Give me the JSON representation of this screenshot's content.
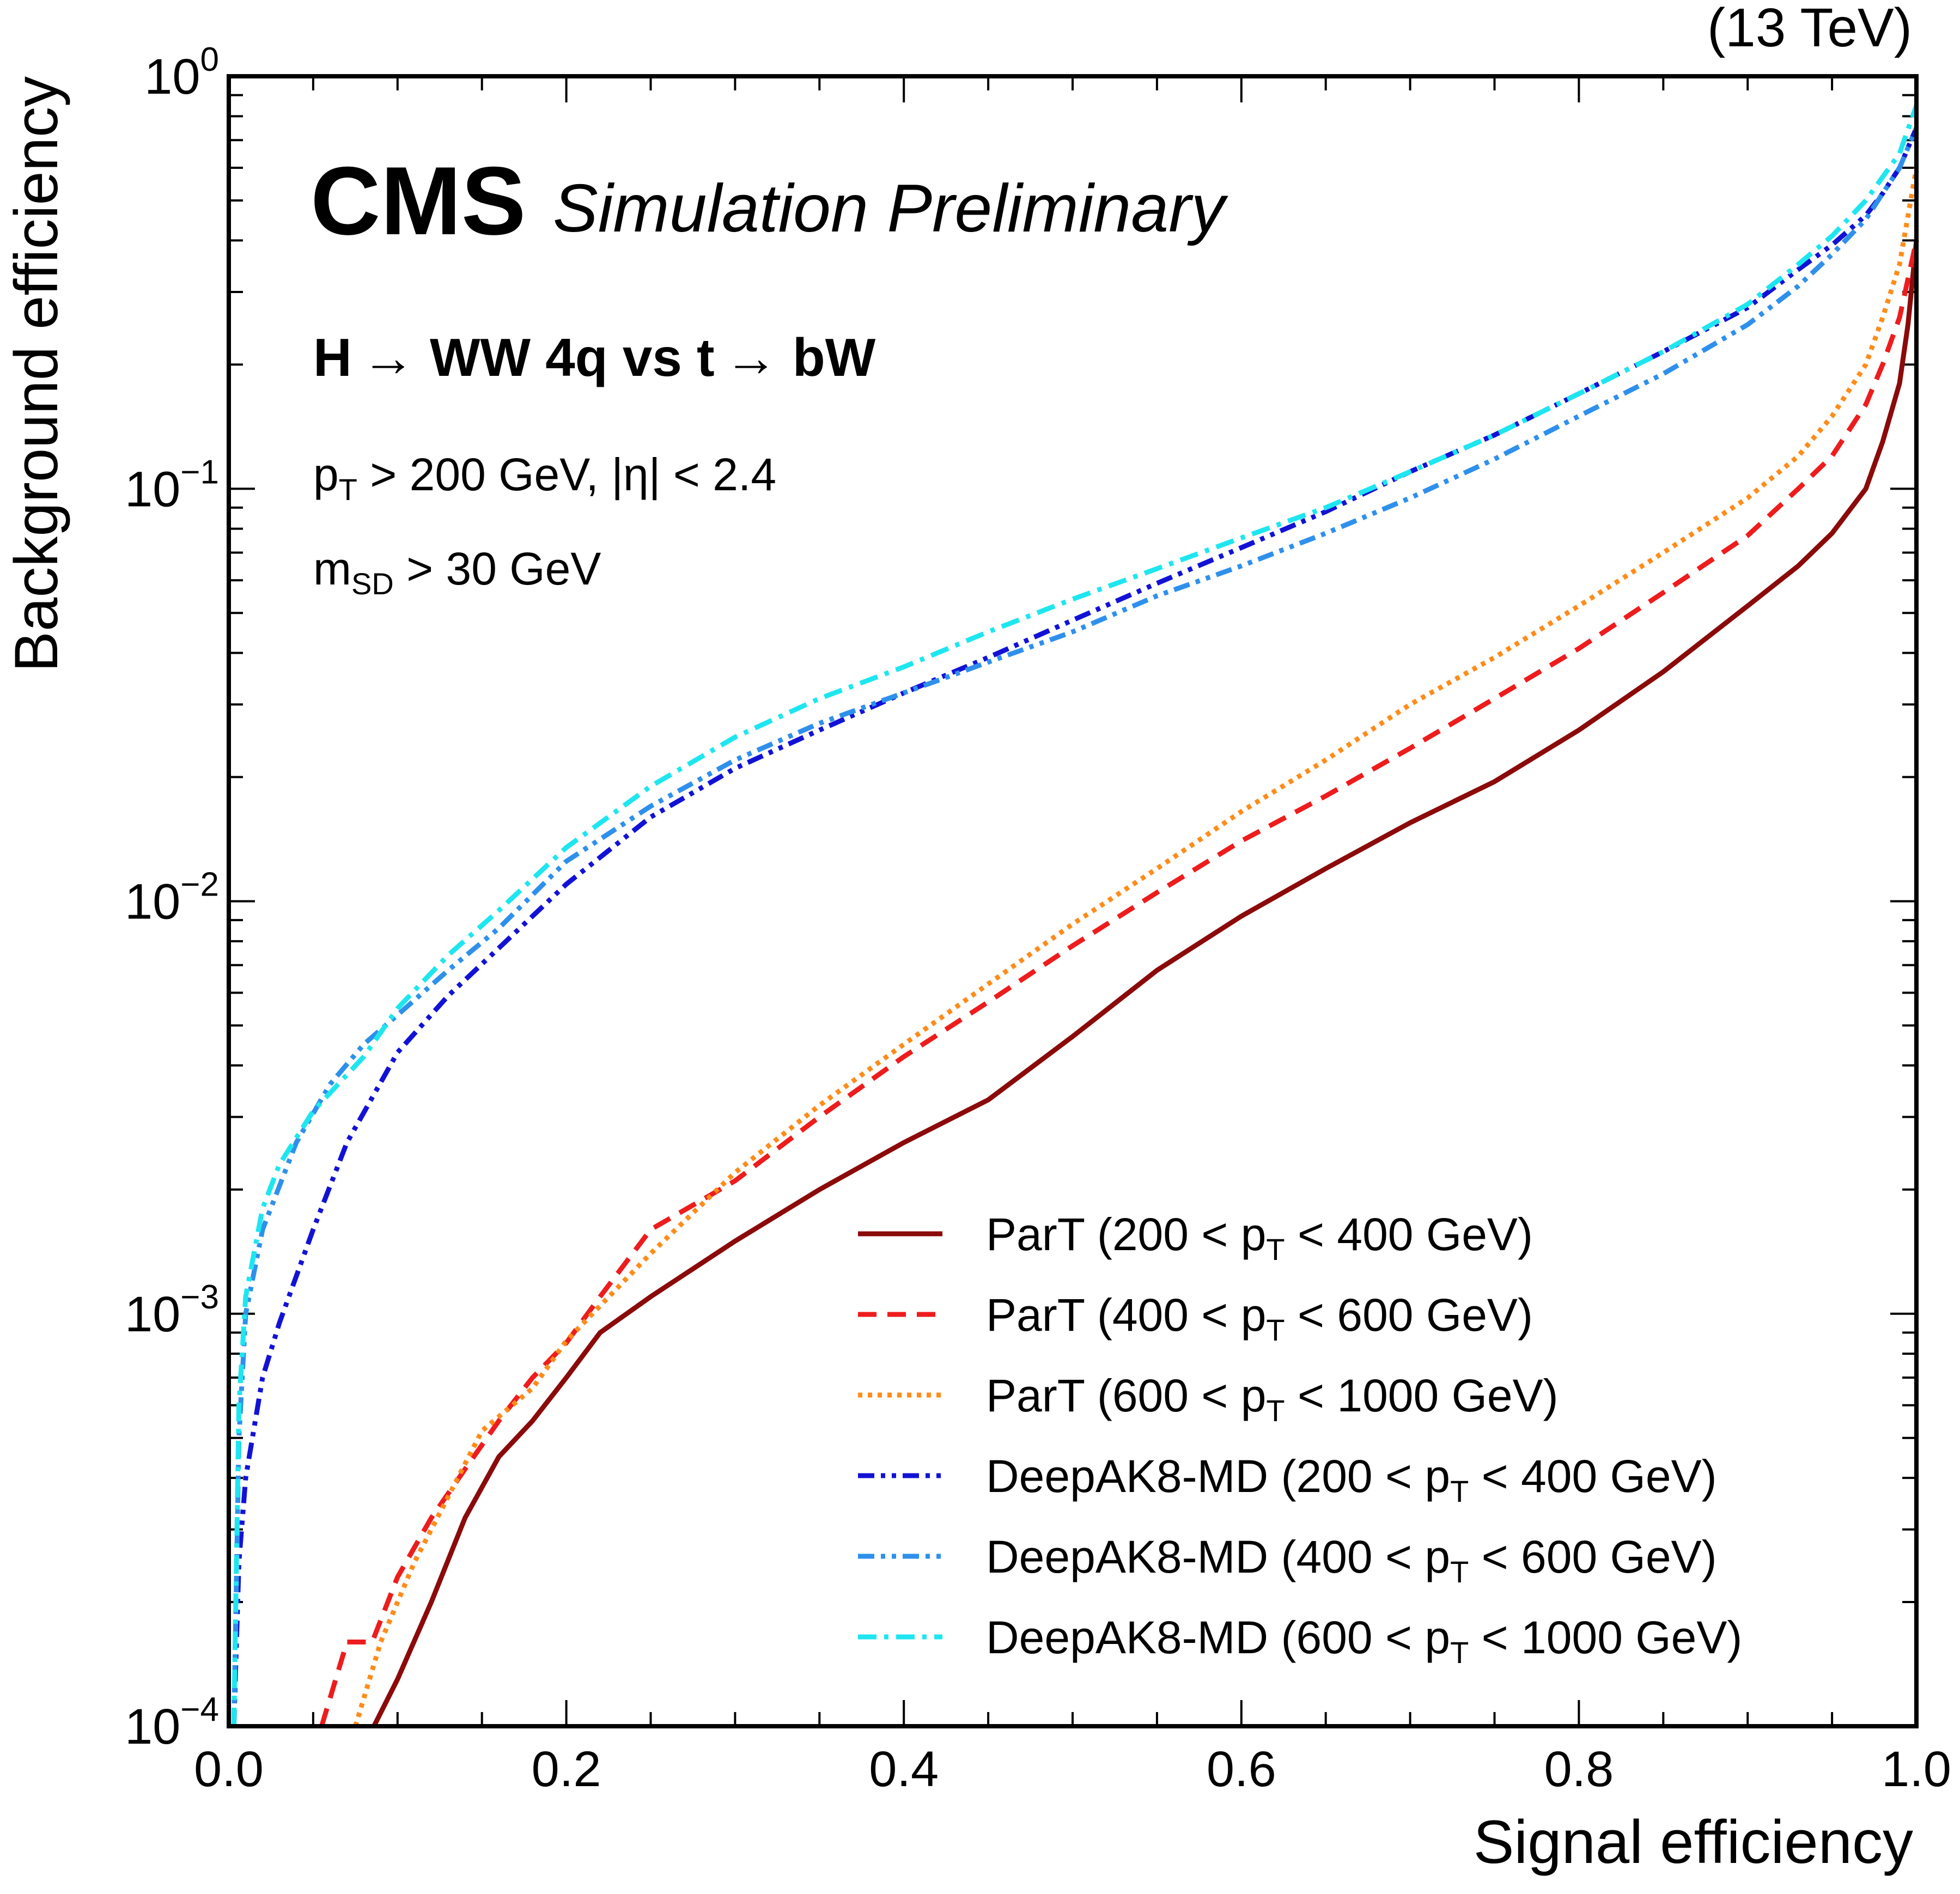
{
  "energy_label": "(13 TeV)",
  "cms_label": "CMS",
  "cms_sublabel": "Simulation Preliminary",
  "annotations": {
    "process": {
      "pre": "H",
      "mid": " WW 4q vs t",
      "post": " bW",
      "arrow": "→"
    },
    "pt_cut": {
      "p": "p",
      "sub": "T",
      "rest": " > 200 GeV,  |η| < 2.4"
    },
    "msd_cut": {
      "m": "m",
      "sub": "SD",
      "rest": " > 30 GeV"
    }
  },
  "chart_data": {
    "type": "line",
    "title": "",
    "xlabel": "Signal efficiency",
    "ylabel": "Background efficiency",
    "xlim": [
      0.0,
      1.0
    ],
    "ylim": [
      0.0001,
      1.0
    ],
    "yscale": "log",
    "x_ticks": [
      "0.0",
      "0.2",
      "0.4",
      "0.6",
      "0.8",
      "1.0"
    ],
    "y_ticks": [
      {
        "base": "10",
        "exp": "0"
      },
      {
        "base": "10",
        "exp": "−1"
      },
      {
        "base": "10",
        "exp": "−2"
      },
      {
        "base": "10",
        "exp": "−3"
      },
      {
        "base": "10",
        "exp": "−4"
      }
    ],
    "legend_position": "bottom-right",
    "series": [
      {
        "name": "ParT (200<pT<400 GeV)",
        "label_pre": "ParT (200 < p",
        "label_sub": "T",
        "label_post": " < 400 GeV)",
        "color": "#8b0a0a",
        "style": "solid",
        "x": [
          0.086,
          0.1,
          0.12,
          0.14,
          0.16,
          0.18,
          0.2,
          0.22,
          0.25,
          0.3,
          0.35,
          0.4,
          0.45,
          0.5,
          0.55,
          0.6,
          0.65,
          0.7,
          0.75,
          0.8,
          0.85,
          0.9,
          0.93,
          0.95,
          0.97,
          0.98,
          0.99,
          0.995,
          1.0
        ],
        "y": [
          0.0001,
          0.00013,
          0.0002,
          0.00032,
          0.00045,
          0.00055,
          0.0007,
          0.0009,
          0.0011,
          0.0015,
          0.002,
          0.0026,
          0.0033,
          0.0047,
          0.0068,
          0.0092,
          0.012,
          0.0155,
          0.0195,
          0.026,
          0.036,
          0.052,
          0.065,
          0.078,
          0.1,
          0.13,
          0.18,
          0.25,
          0.4
        ]
      },
      {
        "name": "ParT (400<pT<600 GeV)",
        "label_pre": "ParT (400 < p",
        "label_sub": "T",
        "label_post": " < 600 GeV)",
        "color": "#ee1c1c",
        "style": "dashed",
        "x": [
          0.055,
          0.07,
          0.085,
          0.1,
          0.12,
          0.14,
          0.16,
          0.18,
          0.2,
          0.22,
          0.25,
          0.3,
          0.35,
          0.4,
          0.45,
          0.5,
          0.55,
          0.6,
          0.65,
          0.7,
          0.75,
          0.8,
          0.85,
          0.9,
          0.93,
          0.95,
          0.97,
          0.98,
          0.99,
          1.0
        ],
        "y": [
          0.0001,
          0.00016,
          0.00016,
          0.00023,
          0.00032,
          0.00042,
          0.00055,
          0.0007,
          0.00085,
          0.0011,
          0.0016,
          0.0021,
          0.003,
          0.0042,
          0.0057,
          0.0078,
          0.0105,
          0.014,
          0.018,
          0.0235,
          0.031,
          0.041,
          0.056,
          0.077,
          0.1,
          0.12,
          0.16,
          0.2,
          0.26,
          0.4
        ]
      },
      {
        "name": "ParT (600<pT<1000 GeV)",
        "label_pre": "ParT (600 < p",
        "label_sub": "T",
        "label_post": " < 1000 GeV)",
        "color": "#ff8c1a",
        "style": "dotted",
        "x": [
          0.075,
          0.09,
          0.11,
          0.13,
          0.15,
          0.18,
          0.2,
          0.25,
          0.3,
          0.35,
          0.4,
          0.45,
          0.5,
          0.55,
          0.6,
          0.65,
          0.7,
          0.75,
          0.8,
          0.85,
          0.9,
          0.93,
          0.95,
          0.97,
          0.98,
          0.99,
          1.0
        ],
        "y": [
          0.0001,
          0.00016,
          0.00025,
          0.00036,
          0.00052,
          0.00066,
          0.00086,
          0.0014,
          0.0022,
          0.0032,
          0.0045,
          0.0063,
          0.0088,
          0.012,
          0.0165,
          0.022,
          0.03,
          0.039,
          0.052,
          0.07,
          0.095,
          0.12,
          0.15,
          0.2,
          0.26,
          0.35,
          0.6
        ]
      },
      {
        "name": "DeepAK8-MD (200<pT<400 GeV)",
        "label_pre": "DeepAK8-MD (200 < p",
        "label_sub": "T",
        "label_post": " < 400 GeV)",
        "color": "#1212d6",
        "style": "dashdotdot",
        "x": [
          0.003,
          0.006,
          0.01,
          0.02,
          0.03,
          0.05,
          0.07,
          0.1,
          0.13,
          0.16,
          0.2,
          0.25,
          0.3,
          0.35,
          0.4,
          0.45,
          0.5,
          0.55,
          0.6,
          0.65,
          0.7,
          0.75,
          0.8,
          0.85,
          0.9,
          0.93,
          0.95,
          0.97,
          0.98,
          0.99,
          1.0
        ],
        "y": [
          0.0001,
          0.00025,
          0.0004,
          0.0007,
          0.00095,
          0.0016,
          0.0026,
          0.0043,
          0.0059,
          0.0077,
          0.011,
          0.016,
          0.021,
          0.026,
          0.032,
          0.039,
          0.048,
          0.059,
          0.072,
          0.088,
          0.11,
          0.135,
          0.17,
          0.215,
          0.275,
          0.34,
          0.39,
          0.46,
          0.52,
          0.6,
          0.75
        ]
      },
      {
        "name": "DeepAK8-MD (400<pT<600 GeV)",
        "label_pre": "DeepAK8-MD (400 < p",
        "label_sub": "T",
        "label_post": " < 600 GeV)",
        "color": "#2f90ec",
        "style": "dashdotdot",
        "x": [
          0.003,
          0.006,
          0.01,
          0.02,
          0.04,
          0.06,
          0.08,
          0.1,
          0.13,
          0.16,
          0.2,
          0.25,
          0.3,
          0.35,
          0.4,
          0.45,
          0.5,
          0.55,
          0.6,
          0.65,
          0.7,
          0.75,
          0.8,
          0.85,
          0.9,
          0.93,
          0.95,
          0.97,
          0.98,
          0.99,
          1.0
        ],
        "y": [
          0.0001,
          0.0005,
          0.001,
          0.0016,
          0.0026,
          0.0036,
          0.0045,
          0.0053,
          0.0068,
          0.0086,
          0.0125,
          0.017,
          0.022,
          0.027,
          0.032,
          0.038,
          0.045,
          0.055,
          0.065,
          0.078,
          0.095,
          0.118,
          0.15,
          0.19,
          0.25,
          0.31,
          0.37,
          0.45,
          0.52,
          0.6,
          0.75
        ]
      },
      {
        "name": "DeepAK8-MD (600<pT<1000 GeV)",
        "label_pre": "DeepAK8-MD (600 < p",
        "label_sub": "T",
        "label_post": " < 1000 GeV)",
        "color": "#1ee6f0",
        "style": "dashdot",
        "x": [
          0.003,
          0.006,
          0.01,
          0.02,
          0.03,
          0.05,
          0.08,
          0.1,
          0.13,
          0.16,
          0.2,
          0.25,
          0.3,
          0.35,
          0.4,
          0.45,
          0.5,
          0.55,
          0.6,
          0.65,
          0.7,
          0.75,
          0.8,
          0.85,
          0.9,
          0.93,
          0.95,
          0.97,
          0.98,
          0.99,
          1.0
        ],
        "y": [
          0.0001,
          0.0006,
          0.0011,
          0.0018,
          0.0023,
          0.0031,
          0.0042,
          0.0055,
          0.0074,
          0.0095,
          0.0135,
          0.019,
          0.025,
          0.031,
          0.037,
          0.045,
          0.054,
          0.064,
          0.076,
          0.09,
          0.11,
          0.135,
          0.17,
          0.215,
          0.28,
          0.35,
          0.41,
          0.5,
          0.57,
          0.65,
          0.85
        ]
      }
    ]
  }
}
